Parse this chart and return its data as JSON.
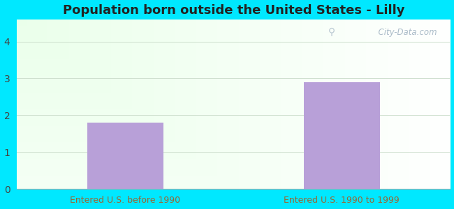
{
  "title": "Population born outside the United States - Lilly",
  "categories": [
    "Entered U.S. before 1990",
    "Entered U.S. 1990 to 1999"
  ],
  "values": [
    1.8,
    2.9
  ],
  "bar_color": "#b8a0d8",
  "bar_width": 0.35,
  "ylim": [
    0,
    4.6
  ],
  "yticks": [
    0,
    1,
    2,
    3,
    4
  ],
  "background_outer": "#00e8ff",
  "xlabel_color": "#996633",
  "title_fontsize": 13,
  "tick_fontsize": 10,
  "xlabel_fontsize": 9,
  "watermark_text": "  City-Data.com",
  "watermark_color": "#aabbc8",
  "grid_color": "#ccddcc"
}
